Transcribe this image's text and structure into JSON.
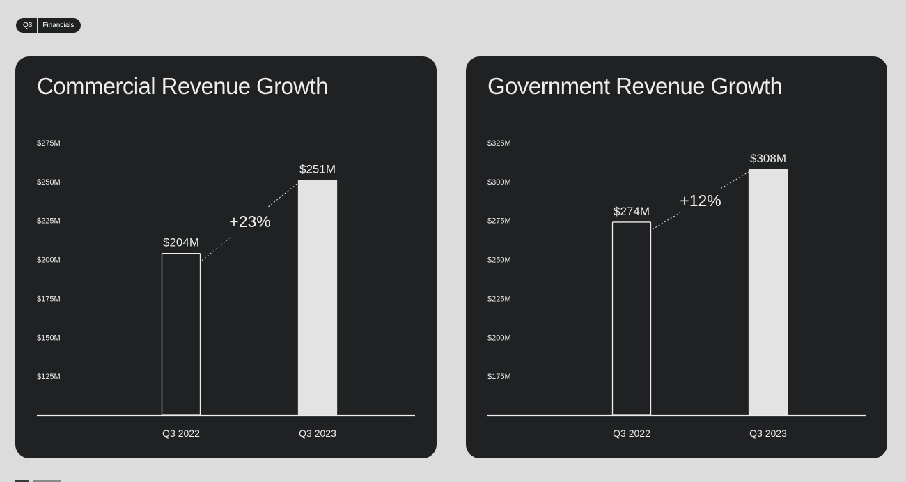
{
  "tag": {
    "quarter": "Q3",
    "section": "Financials"
  },
  "chart_data": [
    {
      "type": "bar",
      "title": "Commercial Revenue Growth",
      "categories": [
        "Q3 2022",
        "Q3 2023"
      ],
      "values": [
        204,
        251
      ],
      "data_labels": [
        "$204M",
        "$251M"
      ],
      "growth_label": "+23%",
      "yticks": [
        125,
        150,
        175,
        200,
        225,
        250,
        275
      ],
      "ytick_labels": [
        "$125M",
        "$150M",
        "$175M",
        "$200M",
        "$225M",
        "$250M",
        "$275M"
      ],
      "ylim": [
        100,
        275
      ],
      "xlabel": "",
      "ylabel": "",
      "grid": false,
      "bar_styles": [
        "outline",
        "filled"
      ]
    },
    {
      "type": "bar",
      "title": "Government Revenue Growth",
      "categories": [
        "Q3 2022",
        "Q3 2023"
      ],
      "values": [
        274,
        308
      ],
      "data_labels": [
        "$274M",
        "$308M"
      ],
      "growth_label": "+12%",
      "yticks": [
        175,
        200,
        225,
        250,
        275,
        300,
        325
      ],
      "ytick_labels": [
        "$175M",
        "$200M",
        "$225M",
        "$250M",
        "$275M",
        "$300M",
        "$325M"
      ],
      "ylim": [
        150,
        325
      ],
      "xlabel": "",
      "ylabel": "",
      "grid": false,
      "bar_styles": [
        "outline",
        "filled"
      ]
    }
  ],
  "colors": {
    "background": "#dcdcdc",
    "card": "#1f2123",
    "foreground": "#ededed",
    "bar_fill": "#e3e3e3"
  }
}
